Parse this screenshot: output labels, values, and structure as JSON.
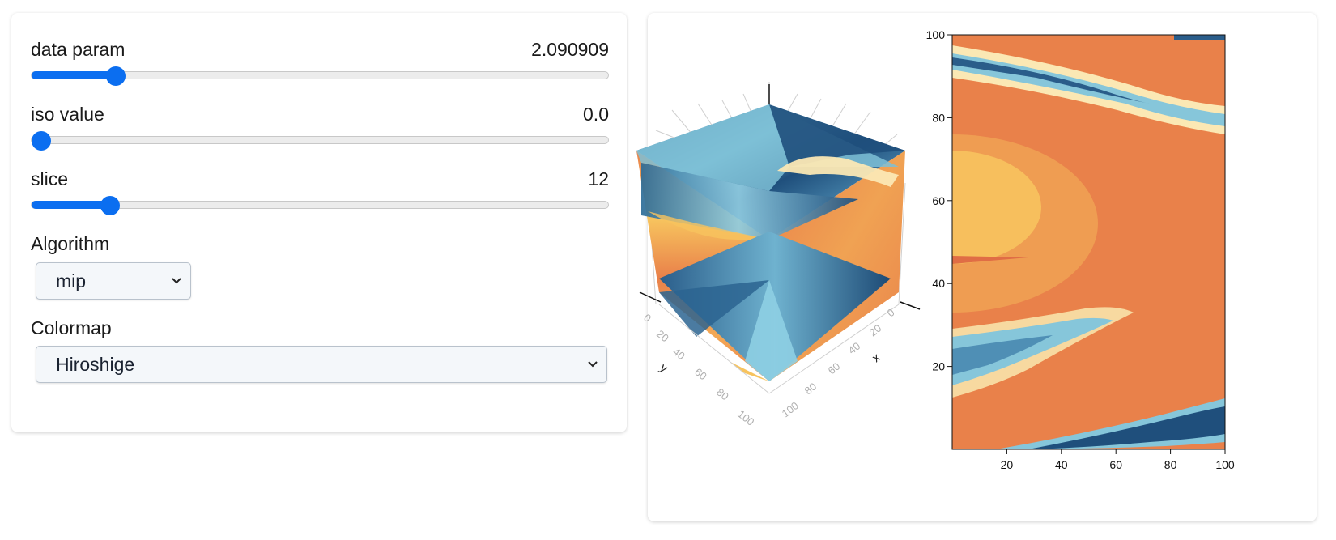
{
  "controls": {
    "data_param": {
      "label": "data param",
      "value": "2.090909",
      "fraction": 0.134
    },
    "iso_value": {
      "label": "iso value",
      "value": "0.0",
      "fraction": 0.0
    },
    "slice": {
      "label": "slice",
      "value": "12",
      "fraction": 0.123
    },
    "algorithm": {
      "label": "Algorithm",
      "selected": "mip"
    },
    "colormap": {
      "label": "Colormap",
      "selected": "Hiroshige"
    }
  },
  "volume_axes": {
    "x_label": "x",
    "y_label": "y",
    "x_ticks": [
      "0",
      "20",
      "40",
      "60",
      "80",
      "100"
    ],
    "y_ticks": [
      "0",
      "20",
      "40",
      "60",
      "80",
      "100"
    ]
  },
  "chart_data": {
    "type": "heatmap",
    "colormap": "Hiroshige",
    "xlim": [
      0,
      100
    ],
    "ylim": [
      0,
      100
    ],
    "x_ticks": [
      20,
      40,
      60,
      80,
      100
    ],
    "y_ticks": [
      20,
      40,
      60,
      80,
      100
    ],
    "x_tick_labels": [
      "20",
      "40",
      "60",
      "80",
      "100"
    ],
    "y_tick_labels": [
      "20",
      "40",
      "60",
      "80",
      "100"
    ],
    "grid": false,
    "colors": {
      "background_orange": "#e9814a",
      "light_orange": "#f7c35e",
      "light_blue": "#86c6da",
      "dark_blue": "#1f4f7c",
      "pale_yellow": "#fbe8b4"
    }
  }
}
